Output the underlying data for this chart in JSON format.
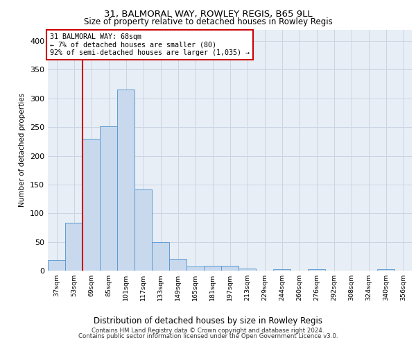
{
  "title_line1": "31, BALMORAL WAY, ROWLEY REGIS, B65 9LL",
  "title_line2": "Size of property relative to detached houses in Rowley Regis",
  "xlabel": "Distribution of detached houses by size in Rowley Regis",
  "ylabel": "Number of detached properties",
  "footer_line1": "Contains HM Land Registry data © Crown copyright and database right 2024.",
  "footer_line2": "Contains public sector information licensed under the Open Government Licence v3.0.",
  "bin_labels": [
    "37sqm",
    "53sqm",
    "69sqm",
    "85sqm",
    "101sqm",
    "117sqm",
    "133sqm",
    "149sqm",
    "165sqm",
    "181sqm",
    "197sqm",
    "213sqm",
    "229sqm",
    "244sqm",
    "260sqm",
    "276sqm",
    "292sqm",
    "308sqm",
    "324sqm",
    "340sqm",
    "356sqm"
  ],
  "bar_values": [
    18,
    83,
    230,
    251,
    315,
    141,
    50,
    20,
    7,
    9,
    9,
    4,
    0,
    3,
    0,
    3,
    0,
    0,
    0,
    2,
    0
  ],
  "bar_color": "#c9d9ed",
  "bar_edge_color": "#5b9bd5",
  "annotation_line1": "31 BALMORAL WAY: 68sqm",
  "annotation_line2": "← 7% of detached houses are smaller (80)",
  "annotation_line3": "92% of semi-detached houses are larger (1,035) →",
  "annotation_box_color": "#ffffff",
  "annotation_box_edge": "#cc0000",
  "red_line_color": "#cc0000",
  "ylim": [
    0,
    420
  ],
  "yticks": [
    0,
    50,
    100,
    150,
    200,
    250,
    300,
    350,
    400
  ],
  "grid_color": "#c8d4e3",
  "background_color": "#e8eef5"
}
